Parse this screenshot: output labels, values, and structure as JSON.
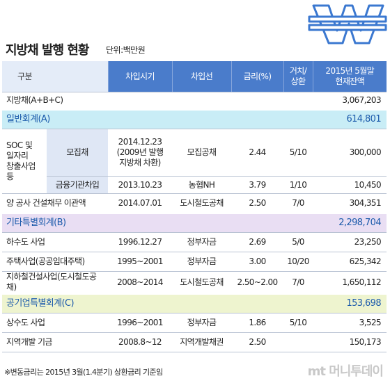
{
  "header": {
    "title": "지방채 발행 현황",
    "unit": "단위:백만원"
  },
  "table": {
    "columns": [
      "구분",
      "차입시기",
      "차입선",
      "금리(%)",
      "거치/\n상환",
      "2015년 5월말\n현재잔액"
    ],
    "total": {
      "label": "지방채(A+B+C)",
      "balance": "3,067,203"
    },
    "sections": [
      {
        "label": "일반회계(A)",
        "balance": "614,801",
        "group": {
          "label": "SOC 및\n일자리\n창출사업\n등",
          "items": [
            {
              "sub": "모집채",
              "date": "2014.12.23\n(2009년 발행\n지방채 차환)",
              "lender": "모집공채",
              "rate": "2.44",
              "term": "5/10",
              "balance": "300,000"
            },
            {
              "sub": "금융기관차입",
              "date": "2013.10.23",
              "lender": "농협NH",
              "rate": "3.79",
              "term": "1/10",
              "balance": "10,450"
            }
          ]
        },
        "items": [
          {
            "label": "양 공사 건설채무 이관액",
            "date": "2014.07.01",
            "lender": "도시철도공채",
            "rate": "2.50",
            "term": "7/0",
            "balance": "304,351"
          }
        ]
      },
      {
        "label": "기타특별회계(B)",
        "balance": "2,298,704",
        "items": [
          {
            "label": "하수도 사업",
            "date": "1996.12.27",
            "lender": "정부자금",
            "rate": "2.69",
            "term": "5/0",
            "balance": "23,250"
          },
          {
            "label": "주택사업(공공임대주택)",
            "date": "1995~2001",
            "lender": "정부자금",
            "rate": "3.00",
            "term": "10/20",
            "balance": "625,342"
          },
          {
            "label": "지하철건설사업(도시철도공채)",
            "date": "2008~2014",
            "lender": "도시철도공채",
            "rate": "2.50~2.00",
            "term": "7/0",
            "balance": "1,650,112"
          }
        ]
      },
      {
        "label": "공기업특별회계(C)",
        "balance": "153,698",
        "items": [
          {
            "label": "상수도 사업",
            "date": "1996~2001",
            "lender": "정부자금",
            "rate": "1.86",
            "term": "5/10",
            "balance": "3,525"
          },
          {
            "label": "지역개발 기금",
            "date": "2008.8~12",
            "lender": "지역개발채권",
            "rate": "2.50",
            "balance": "150,173"
          }
        ]
      }
    ]
  },
  "footnote": "※변동금리는 2015년 3월(1.4분기) 상환금리 기준임",
  "logo": "mt 머니투데이"
}
